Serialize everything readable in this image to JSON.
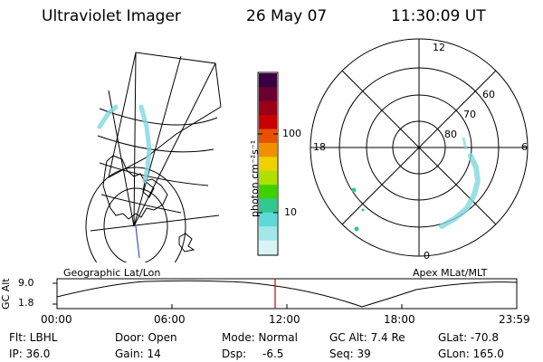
{
  "header": {
    "title": "Ultraviolet Imager",
    "date": "26 May 07",
    "time": "11:30:09 UT"
  },
  "left_panel": {
    "caption": "Geographic Lat/Lon"
  },
  "right_panel": {
    "caption": "Apex MLat/MLT",
    "mlt_labels": {
      "top": "12",
      "bottom": "0",
      "left": "18",
      "right": "6"
    },
    "lat_labels": [
      "60",
      "70",
      "80"
    ]
  },
  "colorbar": {
    "unit_label": "photon cm⁻²s⁻¹",
    "tick_labels": [
      "100",
      "10"
    ],
    "colors": [
      "#3a0040",
      "#6a0030",
      "#9a0018",
      "#c80000",
      "#e85000",
      "#f09000",
      "#f0d000",
      "#b0e000",
      "#40d000",
      "#30c890",
      "#60d8d8",
      "#a0e8ea",
      "#d8f4f4"
    ]
  },
  "timeline": {
    "axis_label": "GC Alt",
    "y_ticks": [
      "9.0",
      "1.8"
    ],
    "x_ticks": [
      "00:00",
      "06:00",
      "12:00",
      "18:00",
      "23:59"
    ],
    "marker_time": "11:30",
    "marker_color": "#cc0000"
  },
  "info": {
    "flt": "Flt: LBHL",
    "ip": "IP: 36.0",
    "door": "Door: Open",
    "gain": "Gain: 14",
    "mode": "Mode: Normal",
    "dsp_label": "Dsp:",
    "dsp_value": "-6.5",
    "gc_alt": "GC Alt: 7.4 Re",
    "seq": "Seq: 39",
    "glat": "GLat: -70.8",
    "glon": "GLon: 165.0"
  },
  "aurora_color": "#7fd8e0"
}
